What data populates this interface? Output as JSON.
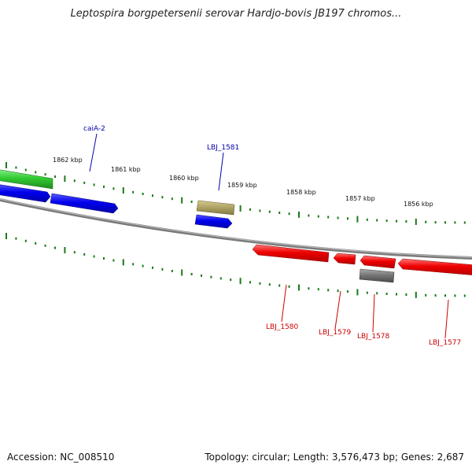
{
  "title": "Leptospira borgpetersenii serovar Hardjo-bovis JB197 chromos...",
  "footer": {
    "accession": "Accession: NC_008510",
    "summary": "Topology: circular; Length: 3,576,473 bp; Genes: 2,687"
  },
  "ruler": {
    "labels": [
      "1862 kbp",
      "1861 kbp",
      "1860 kbp",
      "1859 kbp",
      "1858 kbp",
      "1857 kbp",
      "1856 kbp"
    ]
  },
  "genes": {
    "labels": [
      "caiA-2",
      "LBJ_1581",
      "LBJ_1580",
      "LBJ_1579",
      "LBJ_1578",
      "LBJ_1577"
    ]
  },
  "colors": {
    "forward_label": "#0000aa",
    "reverse_label": "#cc0000",
    "tick": "#1a7a1a",
    "backbone": "#888888"
  }
}
